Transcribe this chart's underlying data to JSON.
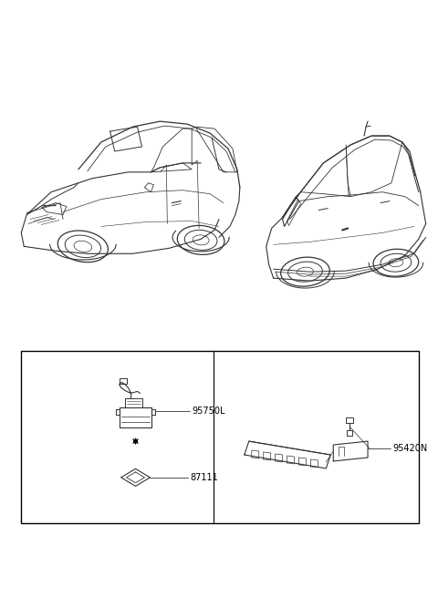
{
  "bg_color": "#ffffff",
  "line_color": "#333333",
  "text_color": "#000000",
  "fig_width": 4.8,
  "fig_height": 6.55,
  "dpi": 100,
  "label_95750L": "95750L",
  "label_87111": "87111",
  "label_95420N": "95420N"
}
